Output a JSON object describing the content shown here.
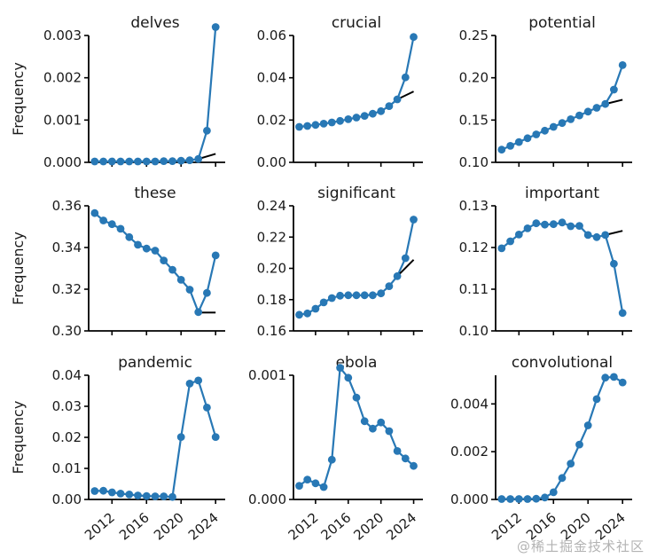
{
  "watermark": "@稀土掘金技术社区",
  "colors": {
    "line": "#2878b5",
    "trend": "#000000",
    "axis": "#000000",
    "text": "#1a1a1a",
    "watermark": "#b3b3b3"
  },
  "chart_data": {
    "type": "line",
    "layout_hint": "3x3 small multiples, shared x-axis 2010-2024, markers on lines, short black trend segment on top/middle rows, left+bottom spines only, outward ticks",
    "ylabel": "Frequency",
    "years": [
      2010,
      2011,
      2012,
      2013,
      2014,
      2015,
      2016,
      2017,
      2018,
      2019,
      2020,
      2021,
      2022,
      2023,
      2024
    ],
    "xticks": [
      2012,
      2016,
      2020,
      2024
    ],
    "xtick_labels": [
      "2012",
      "2016",
      "2020",
      "2024"
    ],
    "xlim": [
      2009.3,
      2024.7
    ],
    "charts": [
      {
        "title": "delves",
        "values": [
          2e-05,
          2e-05,
          2e-05,
          2e-05,
          2e-05,
          2e-05,
          2e-05,
          2e-05,
          3e-05,
          3e-05,
          4e-05,
          5e-05,
          8e-05,
          0.00075,
          0.0032
        ],
        "ylim": [
          0,
          0.003
        ],
        "yticks": [
          0,
          0.001,
          0.002,
          0.003
        ],
        "ytick_labels": [
          "0.000",
          "0.001",
          "0.002",
          "0.003"
        ],
        "trend": {
          "x": [
            2022,
            2024
          ],
          "y": [
            8e-05,
            0.0002
          ]
        }
      },
      {
        "title": "crucial",
        "values": [
          0.0168,
          0.0172,
          0.0177,
          0.0183,
          0.0189,
          0.0196,
          0.0204,
          0.0212,
          0.022,
          0.023,
          0.0242,
          0.0266,
          0.0298,
          0.0402,
          0.0593
        ],
        "ylim": [
          0,
          0.06
        ],
        "yticks": [
          0,
          0.02,
          0.04,
          0.06
        ],
        "ytick_labels": [
          "0.00",
          "0.02",
          "0.04",
          "0.06"
        ],
        "trend": {
          "x": [
            2022,
            2024
          ],
          "y": [
            0.0298,
            0.0335
          ]
        }
      },
      {
        "title": "potential",
        "values": [
          0.115,
          0.1195,
          0.124,
          0.1285,
          0.133,
          0.1375,
          0.142,
          0.1465,
          0.151,
          0.1555,
          0.16,
          0.1645,
          0.169,
          0.186,
          0.215
        ],
        "ylim": [
          0.1,
          0.25
        ],
        "yticks": [
          0.1,
          0.15,
          0.2,
          0.25
        ],
        "ytick_labels": [
          "0.10",
          "0.15",
          "0.20",
          "0.25"
        ],
        "trend": {
          "x": [
            2022,
            2024
          ],
          "y": [
            0.169,
            0.174
          ]
        }
      },
      {
        "title": "these",
        "values": [
          0.3565,
          0.353,
          0.3512,
          0.349,
          0.345,
          0.3413,
          0.3395,
          0.3385,
          0.3338,
          0.3293,
          0.3245,
          0.3198,
          0.309,
          0.3182,
          0.3362
        ],
        "ylim": [
          0.3,
          0.36
        ],
        "yticks": [
          0.3,
          0.32,
          0.34,
          0.36
        ],
        "ytick_labels": [
          "0.30",
          "0.32",
          "0.34",
          "0.36"
        ],
        "trend": {
          "x": [
            2022.4,
            2024
          ],
          "y": [
            0.3088,
            0.3088
          ]
        }
      },
      {
        "title": "significant",
        "values": [
          0.1703,
          0.1712,
          0.1742,
          0.1782,
          0.181,
          0.1825,
          0.1828,
          0.1828,
          0.1828,
          0.1828,
          0.184,
          0.1886,
          0.195,
          0.2065,
          0.2312
        ],
        "ylim": [
          0.16,
          0.24
        ],
        "yticks": [
          0.16,
          0.18,
          0.2,
          0.22,
          0.24
        ],
        "ytick_labels": [
          "0.16",
          "0.18",
          "0.20",
          "0.22",
          "0.24"
        ],
        "trend": {
          "x": [
            2022,
            2024
          ],
          "y": [
            0.195,
            0.2055
          ]
        }
      },
      {
        "title": "important",
        "values": [
          0.1198,
          0.1215,
          0.1231,
          0.1246,
          0.1258,
          0.1255,
          0.1256,
          0.126,
          0.1251,
          0.1252,
          0.123,
          0.1225,
          0.123,
          0.1161,
          0.1043
        ],
        "ylim": [
          0.1,
          0.13
        ],
        "yticks": [
          0.1,
          0.11,
          0.12,
          0.13
        ],
        "ytick_labels": [
          "0.10",
          "0.11",
          "0.12",
          "0.13"
        ],
        "trend": {
          "x": [
            2022,
            2024
          ],
          "y": [
            0.123,
            0.124
          ]
        }
      },
      {
        "title": "pandemic",
        "values": [
          0.0027,
          0.0028,
          0.0023,
          0.0019,
          0.0016,
          0.0013,
          0.0011,
          0.001,
          0.001,
          0.0008,
          0.0201,
          0.0373,
          0.0383,
          0.0296,
          0.0201
        ],
        "ylim": [
          0,
          0.04
        ],
        "yticks": [
          0,
          0.01,
          0.02,
          0.03,
          0.04
        ],
        "ytick_labels": [
          "0.00",
          "0.01",
          "0.02",
          "0.03",
          "0.04"
        ],
        "trend": null
      },
      {
        "title": "ebola",
        "values": [
          0.00011,
          0.00016,
          0.00013,
          0.0001,
          0.00032,
          0.00106,
          0.00098,
          0.00082,
          0.00063,
          0.00057,
          0.00062,
          0.00055,
          0.00039,
          0.00033,
          0.00027
        ],
        "ylim": [
          0,
          0.001
        ],
        "yticks": [
          0,
          0.001
        ],
        "ytick_labels": [
          "0.000",
          "0.001"
        ],
        "trend": null
      },
      {
        "title": "convolutional",
        "values": [
          2e-05,
          2e-05,
          2e-05,
          2e-05,
          3e-05,
          8e-05,
          0.0003,
          0.0009,
          0.0015,
          0.0023,
          0.0031,
          0.0042,
          0.0051,
          0.00513,
          0.0049
        ],
        "ylim": [
          0,
          0.0052
        ],
        "yticks": [
          0,
          0.002,
          0.004
        ],
        "ytick_labels": [
          "0.000",
          "0.002",
          "0.004"
        ],
        "trend": null
      }
    ]
  }
}
